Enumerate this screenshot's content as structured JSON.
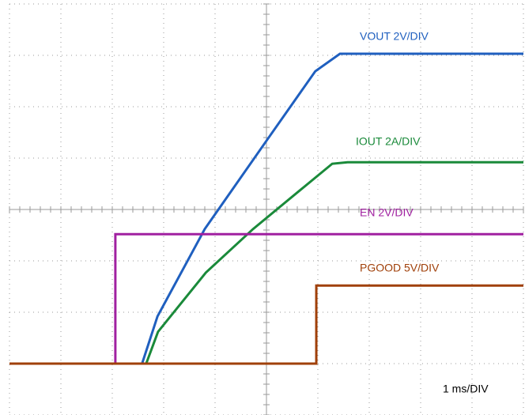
{
  "chart_data": {
    "type": "line",
    "annotation": "1 ms/DIV",
    "xlim": [
      0,
      10
    ],
    "ylim": [
      0,
      8
    ],
    "grid": true,
    "series": [
      {
        "name": "VOUT 2V/DIV",
        "color": "#1f5fbf",
        "x": [
          0,
          2.58,
          2.88,
          3.8,
          5.03,
          5.95,
          6.43,
          10
        ],
        "values": [
          1,
          1,
          1.92,
          3.62,
          5.38,
          6.69,
          7.03,
          7.03
        ]
      },
      {
        "name": "IOUT 2A/DIV",
        "color": "#1a8a3a",
        "x": [
          0,
          2.66,
          2.89,
          3.82,
          4.74,
          5.66,
          6.28,
          6.58,
          10
        ],
        "values": [
          1,
          1,
          1.62,
          2.77,
          3.62,
          4.38,
          4.89,
          4.92,
          4.92
        ]
      },
      {
        "name": "EN 2V/DIV",
        "color": "#a020a0",
        "x": [
          0,
          2.06,
          2.06,
          10
        ],
        "values": [
          1,
          1,
          3.52,
          3.52
        ]
      },
      {
        "name": "PGOOD 5V/DIV",
        "color": "#a0400a",
        "x": [
          0,
          5.97,
          5.97,
          10
        ],
        "values": [
          1,
          1,
          2.52,
          2.52
        ]
      }
    ]
  }
}
